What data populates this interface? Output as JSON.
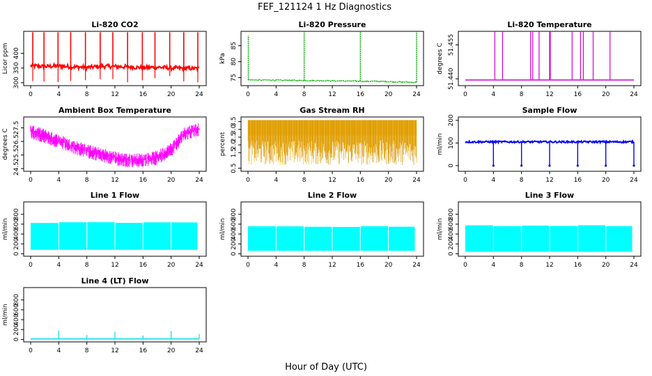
{
  "figure": {
    "title": "FEF_121124  1 Hz Diagnostics",
    "xlabel": "Hour of Day (UTC)"
  },
  "chart_data": [
    {
      "type": "line",
      "title": "Li-820 CO2",
      "xlabel": "",
      "ylabel": "Licor ppm",
      "color": "#ff0000",
      "xlim": [
        0,
        24
      ],
      "ylim": [
        290,
        475
      ],
      "xticks": [
        "0",
        "4",
        "8",
        "12",
        "16",
        "20",
        "24"
      ],
      "yticks": [
        {
          "v": 300,
          "label": "300"
        },
        {
          "v": 350,
          "label": "350"
        },
        {
          "v": 400,
          "label": "400"
        }
      ],
      "x": [
        0,
        2,
        4,
        6,
        8,
        10,
        12,
        14,
        16,
        18,
        20,
        22,
        24
      ],
      "values": [
        358,
        355,
        357,
        354,
        352,
        356,
        355,
        354,
        351,
        353,
        350,
        349,
        348
      ],
      "spikes": [
        0.3,
        1.9,
        3.9,
        5.7,
        7.8,
        9.9,
        11.7,
        13.8,
        15.9,
        17.7,
        19.8,
        21.8,
        23.8
      ],
      "style": "noisy-line"
    },
    {
      "type": "line",
      "title": "Li-820 Pressure",
      "xlabel": "",
      "ylabel": "kPa",
      "color": "#00b000",
      "xlim": [
        0,
        24
      ],
      "ylim": [
        72.5,
        89.5
      ],
      "xticks": [
        "0",
        "4",
        "8",
        "12",
        "16",
        "20",
        "24"
      ],
      "yticks": [
        {
          "v": 75,
          "label": "75"
        },
        {
          "v": 80,
          "label": "80"
        },
        {
          "v": 85,
          "label": "85"
        }
      ],
      "x": [
        0,
        4,
        8,
        12,
        16,
        20,
        24
      ],
      "values": [
        74.3,
        74.2,
        74.1,
        74.0,
        73.9,
        73.8,
        73.5
      ],
      "spikes": [
        0.05,
        8.0,
        16.0,
        24.0
      ],
      "style": "step-line"
    },
    {
      "type": "line",
      "title": "Li-820 Temperature",
      "xlabel": "",
      "ylabel": "degrees C",
      "color": "#d000d0",
      "xlim": [
        0,
        24
      ],
      "ylim": [
        51.437,
        51.461
      ],
      "xticks": [
        "0",
        "4",
        "8",
        "12",
        "16",
        "20",
        "24"
      ],
      "yticks": [
        {
          "v": 51.44,
          "label": "51.440"
        },
        {
          "v": 51.455,
          "label": "51.455"
        }
      ],
      "x": [
        0,
        24
      ],
      "values": [
        51.4395,
        51.4395
      ],
      "spikes": [
        4.2,
        5.3,
        9.3,
        9.6,
        10.5,
        12.0,
        12.1,
        15.2,
        16.4,
        16.8,
        18.2,
        20.6
      ],
      "style": "flat-spikes"
    },
    {
      "type": "line",
      "title": "Ambient Box Temperature",
      "xlabel": "",
      "ylabel": "degrees C",
      "color": "#ff00ff",
      "xlim": [
        0,
        24
      ],
      "ylim": [
        24.3,
        28.3
      ],
      "xticks": [
        "0",
        "4",
        "8",
        "12",
        "16",
        "20",
        "24"
      ],
      "yticks": [
        {
          "v": 24.5,
          "label": "24.5"
        },
        {
          "v": 25.5,
          "label": "25.5"
        },
        {
          "v": 26.5,
          "label": "26.5"
        },
        {
          "v": 27.5,
          "label": "27.5"
        }
      ],
      "x": [
        0,
        2,
        4,
        6,
        8,
        10,
        12,
        14,
        16,
        18,
        20,
        22,
        24
      ],
      "values": [
        27.3,
        27.0,
        26.6,
        26.2,
        25.9,
        25.6,
        25.35,
        25.2,
        25.2,
        25.4,
        26.0,
        27.2,
        27.5
      ],
      "band": 0.9,
      "style": "noisy-band"
    },
    {
      "type": "line",
      "title": "Gas Stream RH",
      "xlabel": "",
      "ylabel": "percent",
      "color": "#e6a000",
      "xlim": [
        0,
        24
      ],
      "ylim": [
        0.3,
        3.8
      ],
      "xticks": [
        "0",
        "4",
        "8",
        "12",
        "16",
        "20",
        "24"
      ],
      "yticks": [
        {
          "v": 0.5,
          "label": "0.5"
        },
        {
          "v": 1.5,
          "label": "1.5"
        },
        {
          "v": 2.0,
          "label": "2.0"
        },
        {
          "v": 2.5,
          "label": "2.5"
        },
        {
          "v": 3.0,
          "label": "3.0"
        },
        {
          "v": 3.5,
          "label": "3.5"
        }
      ],
      "x": [
        0,
        24
      ],
      "values": [
        3.6,
        3.6
      ],
      "low": 0.7,
      "style": "dense-oscillation"
    },
    {
      "type": "line",
      "title": "Sample Flow",
      "xlabel": "",
      "ylabel": "ml/min",
      "color": "#0000ff",
      "xlim": [
        0,
        24
      ],
      "ylim": [
        -25,
        215
      ],
      "xticks": [
        "0",
        "4",
        "8",
        "12",
        "16",
        "20",
        "24"
      ],
      "yticks": [
        {
          "v": 0,
          "label": "0"
        },
        {
          "v": 100,
          "label": "100"
        },
        {
          "v": 200,
          "label": "200"
        }
      ],
      "x": [
        0,
        24
      ],
      "values": [
        105,
        105
      ],
      "spikes": [
        4.0,
        8.0,
        12.0,
        16.0,
        20.0,
        24.0
      ],
      "style": "dips"
    },
    {
      "type": "area",
      "title": "Line 1 Flow",
      "xlabel": "",
      "ylabel": "ml/min",
      "color": "#00ffff",
      "xlim": [
        0,
        24
      ],
      "ylim": [
        -50,
        1050
      ],
      "xticks": [
        "0",
        "4",
        "8",
        "12",
        "16",
        "20",
        "24"
      ],
      "yticks": [
        {
          "v": 0,
          "label": "0"
        },
        {
          "v": 200,
          "label": "200"
        },
        {
          "v": 400,
          "label": "400"
        },
        {
          "v": 600,
          "label": "600"
        },
        {
          "v": 800,
          "label": "800"
        }
      ],
      "x": [
        0,
        24
      ],
      "values": [
        640,
        640
      ],
      "low": 80,
      "gaps": [
        4.0,
        8.0,
        12.0,
        16.0,
        20.0
      ],
      "style": "band-fill"
    },
    {
      "type": "area",
      "title": "Line 2 Flow",
      "xlabel": "",
      "ylabel": "ml/min",
      "color": "#00ffff",
      "xlim": [
        0,
        24
      ],
      "ylim": [
        -50,
        1050
      ],
      "xticks": [
        "0",
        "4",
        "8",
        "12",
        "16",
        "20",
        "24"
      ],
      "yticks": [
        {
          "v": 0,
          "label": "0"
        },
        {
          "v": 200,
          "label": "200"
        },
        {
          "v": 400,
          "label": "400"
        },
        {
          "v": 600,
          "label": "600"
        },
        {
          "v": 800,
          "label": "800"
        }
      ],
      "x": [
        0,
        24
      ],
      "values": [
        560,
        560
      ],
      "low": 60,
      "gaps": [
        4.0,
        8.0,
        12.0,
        16.0,
        20.0
      ],
      "style": "band-fill"
    },
    {
      "type": "area",
      "title": "Line 3 Flow",
      "xlabel": "",
      "ylabel": "ml/min",
      "color": "#00ffff",
      "xlim": [
        0,
        24
      ],
      "ylim": [
        -50,
        1050
      ],
      "xticks": [
        "0",
        "4",
        "8",
        "12",
        "16",
        "20",
        "24"
      ],
      "yticks": [
        {
          "v": 0,
          "label": "0"
        },
        {
          "v": 200,
          "label": "200"
        },
        {
          "v": 400,
          "label": "400"
        },
        {
          "v": 600,
          "label": "600"
        },
        {
          "v": 800,
          "label": "800"
        }
      ],
      "x": [
        0,
        24
      ],
      "values": [
        580,
        580
      ],
      "low": 40,
      "gaps": [
        4.0,
        8.0,
        12.0,
        16.0,
        20.0
      ],
      "style": "band-fill"
    },
    {
      "type": "line",
      "title": "Line 4 (LT) Flow",
      "xlabel": "",
      "ylabel": "ml/min",
      "color": "#00e0e0",
      "xlim": [
        0,
        24
      ],
      "ylim": [
        -50,
        1050
      ],
      "xticks": [
        "0",
        "4",
        "8",
        "12",
        "16",
        "20",
        "24"
      ],
      "yticks": [
        {
          "v": 0,
          "label": "0"
        },
        {
          "v": 200,
          "label": "200"
        },
        {
          "v": 400,
          "label": "400"
        },
        {
          "v": 600,
          "label": "600"
        },
        {
          "v": 800,
          "label": "800"
        }
      ],
      "x": [
        0,
        24
      ],
      "values": [
        10,
        10
      ],
      "spikes": [
        4.0,
        8.0,
        12.0,
        16.0,
        20.0,
        24.0
      ],
      "spike_values": [
        180,
        90,
        160,
        80,
        170,
        110
      ],
      "style": "flat-spikes"
    }
  ]
}
